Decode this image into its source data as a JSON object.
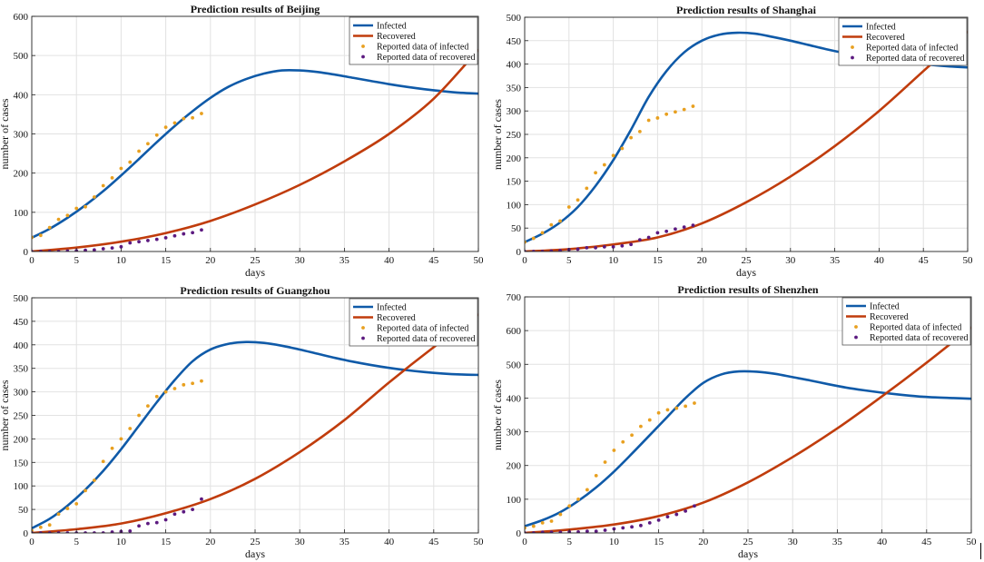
{
  "chart_data": [
    {
      "type": "line",
      "title": "Prediction results of Beijing",
      "xlabel": "days",
      "ylabel": "number of cases",
      "xlim": [
        0,
        50
      ],
      "ylim": [
        0,
        600
      ],
      "xticks": [
        0,
        5,
        10,
        15,
        20,
        25,
        30,
        35,
        40,
        45,
        50
      ],
      "yticks": [
        0,
        100,
        200,
        300,
        400,
        500,
        600
      ],
      "grid": true,
      "legend_position": "top-right",
      "series": [
        {
          "name": "Infected",
          "kind": "line",
          "color": "#0f5aa8",
          "x": [
            0,
            2,
            4,
            6,
            8,
            10,
            12,
            14,
            16,
            18,
            20,
            22,
            24,
            26,
            28,
            30,
            32,
            34,
            36,
            38,
            40,
            42,
            44,
            46,
            48,
            50
          ],
          "y": [
            35,
            58,
            86,
            118,
            154,
            194,
            236,
            279,
            320,
            358,
            392,
            420,
            440,
            454,
            462,
            462,
            458,
            451,
            443,
            435,
            427,
            420,
            414,
            409,
            405,
            403
          ]
        },
        {
          "name": "Recovered",
          "kind": "line",
          "color": "#c03c0c",
          "x": [
            0,
            5,
            10,
            15,
            20,
            25,
            30,
            35,
            40,
            45,
            50
          ],
          "y": [
            0,
            10,
            25,
            47,
            78,
            120,
            170,
            230,
            300,
            390,
            515
          ]
        },
        {
          "name": "Reported data of infected",
          "kind": "scatter",
          "color": "#e8a020",
          "x": [
            0,
            1,
            2,
            3,
            4,
            5,
            6,
            7,
            8,
            9,
            10,
            11,
            12,
            13,
            14,
            15,
            16,
            17,
            18,
            19
          ],
          "y": [
            36,
            41,
            61,
            82,
            92,
            110,
            114,
            139,
            168,
            188,
            212,
            228,
            256,
            275,
            297,
            317,
            328,
            339,
            341,
            352
          ]
        },
        {
          "name": "Reported data of recovered",
          "kind": "scatter",
          "color": "#5c1a80",
          "x": [
            0,
            1,
            2,
            3,
            4,
            5,
            6,
            7,
            8,
            9,
            10,
            11,
            12,
            13,
            14,
            15,
            16,
            17,
            18,
            19
          ],
          "y": [
            0,
            0,
            0,
            0,
            1,
            2,
            3,
            4,
            7,
            9,
            12,
            22,
            25,
            28,
            31,
            35,
            40,
            45,
            48,
            55
          ]
        }
      ]
    },
    {
      "type": "line",
      "title": "Prediction results of Shanghai",
      "xlabel": "days",
      "ylabel": "number of cases",
      "xlim": [
        0,
        50
      ],
      "ylim": [
        0,
        500
      ],
      "xticks": [
        0,
        5,
        10,
        15,
        20,
        25,
        30,
        35,
        40,
        45,
        50
      ],
      "yticks": [
        0,
        50,
        100,
        150,
        200,
        250,
        300,
        350,
        400,
        450,
        500
      ],
      "grid": true,
      "legend_position": "top-right",
      "series": [
        {
          "name": "Infected",
          "kind": "line",
          "color": "#0f5aa8",
          "x": [
            0,
            2,
            4,
            6,
            8,
            10,
            12,
            14,
            16,
            18,
            20,
            22,
            24,
            26,
            28,
            30,
            32,
            34,
            36,
            38,
            40,
            42,
            44,
            46,
            48,
            50
          ],
          "y": [
            20,
            38,
            62,
            95,
            140,
            195,
            260,
            330,
            385,
            425,
            450,
            463,
            467,
            465,
            458,
            450,
            441,
            432,
            424,
            417,
            411,
            406,
            402,
            398,
            395,
            393
          ]
        },
        {
          "name": "Recovered",
          "kind": "line",
          "color": "#c03c0c",
          "x": [
            0,
            5,
            10,
            15,
            20,
            25,
            30,
            35,
            40,
            45,
            50
          ],
          "y": [
            0,
            5,
            15,
            30,
            60,
            105,
            160,
            225,
            300,
            385,
            470
          ]
        },
        {
          "name": "Reported data of infected",
          "kind": "scatter",
          "color": "#e8a020",
          "x": [
            0,
            1,
            2,
            3,
            4,
            5,
            6,
            7,
            8,
            9,
            10,
            11,
            12,
            13,
            14,
            15,
            16,
            17,
            18,
            19
          ],
          "y": [
            20,
            28,
            40,
            57,
            65,
            95,
            110,
            135,
            168,
            185,
            205,
            220,
            243,
            256,
            280,
            285,
            293,
            298,
            303,
            310
          ]
        },
        {
          "name": "Reported data of recovered",
          "kind": "scatter",
          "color": "#5c1a80",
          "x": [
            0,
            1,
            2,
            3,
            4,
            5,
            6,
            7,
            8,
            9,
            10,
            11,
            12,
            13,
            14,
            15,
            16,
            17,
            18,
            19
          ],
          "y": [
            0,
            0,
            0,
            1,
            2,
            4,
            5,
            8,
            8,
            10,
            10,
            12,
            15,
            25,
            30,
            40,
            43,
            48,
            52,
            56
          ]
        }
      ]
    },
    {
      "type": "line",
      "title": "Prediction results of Guangzhou",
      "xlabel": "days",
      "ylabel": "number of cases",
      "xlim": [
        0,
        50
      ],
      "ylim": [
        0,
        500
      ],
      "xticks": [
        0,
        5,
        10,
        15,
        20,
        25,
        30,
        35,
        40,
        45,
        50
      ],
      "yticks": [
        0,
        50,
        100,
        150,
        200,
        250,
        300,
        350,
        400,
        450,
        500
      ],
      "grid": true,
      "legend_position": "top-right",
      "series": [
        {
          "name": "Infected",
          "kind": "line",
          "color": "#0f5aa8",
          "x": [
            0,
            2,
            4,
            6,
            8,
            10,
            12,
            14,
            16,
            18,
            20,
            22,
            24,
            26,
            28,
            30,
            32,
            34,
            36,
            38,
            40,
            42,
            44,
            46,
            48,
            50
          ],
          "y": [
            10,
            30,
            58,
            92,
            132,
            178,
            228,
            278,
            325,
            365,
            390,
            402,
            406,
            404,
            398,
            390,
            381,
            372,
            364,
            357,
            351,
            346,
            342,
            339,
            337,
            336
          ]
        },
        {
          "name": "Recovered",
          "kind": "line",
          "color": "#c03c0c",
          "x": [
            0,
            5,
            10,
            15,
            20,
            25,
            30,
            35,
            40,
            45,
            50
          ],
          "y": [
            0,
            8,
            20,
            42,
            72,
            115,
            172,
            240,
            320,
            395,
            465
          ]
        },
        {
          "name": "Reported data of infected",
          "kind": "scatter",
          "color": "#e8a020",
          "x": [
            0,
            1,
            2,
            3,
            4,
            5,
            6,
            7,
            8,
            9,
            10,
            11,
            12,
            13,
            14,
            15,
            16,
            17,
            18,
            19
          ],
          "y": [
            5,
            12,
            17,
            40,
            52,
            62,
            90,
            112,
            152,
            180,
            200,
            222,
            250,
            270,
            290,
            300,
            307,
            315,
            318,
            323
          ]
        },
        {
          "name": "Reported data of recovered",
          "kind": "scatter",
          "color": "#5c1a80",
          "x": [
            0,
            1,
            2,
            3,
            4,
            5,
            6,
            7,
            8,
            9,
            10,
            11,
            12,
            13,
            14,
            15,
            16,
            17,
            18,
            19
          ],
          "y": [
            0,
            0,
            0,
            0,
            0,
            0,
            0,
            0,
            0,
            2,
            3,
            4,
            15,
            20,
            22,
            28,
            40,
            45,
            50,
            72
          ]
        }
      ]
    },
    {
      "type": "line",
      "title": "Prediction results of Shenzhen",
      "xlabel": "days",
      "ylabel": "number of cases",
      "xlim": [
        0,
        50
      ],
      "ylim": [
        0,
        700
      ],
      "xticks": [
        0,
        5,
        10,
        15,
        20,
        25,
        30,
        35,
        40,
        45,
        50
      ],
      "yticks": [
        0,
        100,
        200,
        300,
        400,
        500,
        600,
        700
      ],
      "grid": true,
      "legend_position": "top-right",
      "series": [
        {
          "name": "Infected",
          "kind": "line",
          "color": "#0f5aa8",
          "x": [
            0,
            2,
            4,
            6,
            8,
            10,
            12,
            14,
            16,
            18,
            20,
            22,
            24,
            26,
            28,
            30,
            32,
            34,
            36,
            38,
            40,
            42,
            44,
            46,
            48,
            50
          ],
          "y": [
            20,
            38,
            62,
            95,
            135,
            182,
            235,
            290,
            345,
            400,
            445,
            470,
            479,
            478,
            472,
            462,
            452,
            441,
            431,
            423,
            416,
            410,
            405,
            402,
            400,
            398
          ]
        },
        {
          "name": "Recovered",
          "kind": "line",
          "color": "#c03c0c",
          "x": [
            0,
            5,
            10,
            15,
            20,
            25,
            30,
            35,
            40,
            45,
            50
          ],
          "y": [
            0,
            10,
            25,
            50,
            90,
            150,
            225,
            310,
            405,
            505,
            610
          ]
        },
        {
          "name": "Reported data of infected",
          "kind": "scatter",
          "color": "#e8a020",
          "x": [
            0,
            1,
            2,
            3,
            4,
            5,
            6,
            7,
            8,
            9,
            10,
            11,
            12,
            13,
            14,
            15,
            16,
            17,
            18,
            19
          ],
          "y": [
            15,
            20,
            30,
            35,
            55,
            80,
            100,
            128,
            170,
            210,
            245,
            270,
            290,
            316,
            335,
            356,
            365,
            370,
            376,
            385
          ]
        },
        {
          "name": "Reported data of recovered",
          "kind": "scatter",
          "color": "#5c1a80",
          "x": [
            0,
            1,
            2,
            3,
            4,
            5,
            6,
            7,
            8,
            9,
            10,
            11,
            12,
            13,
            14,
            15,
            16,
            17,
            18,
            19
          ],
          "y": [
            0,
            0,
            2,
            2,
            2,
            3,
            3,
            5,
            5,
            8,
            12,
            15,
            18,
            22,
            30,
            38,
            48,
            55,
            65,
            80
          ]
        }
      ]
    }
  ]
}
